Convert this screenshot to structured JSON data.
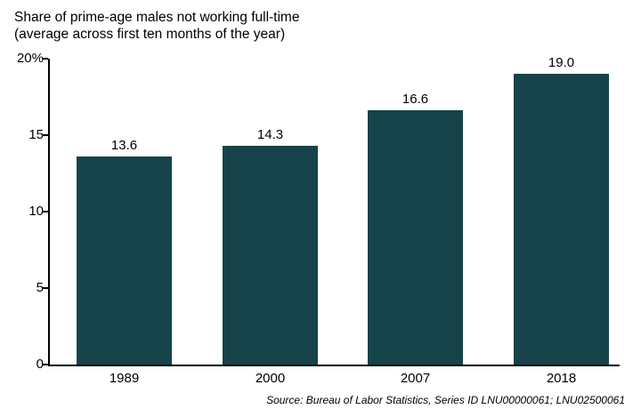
{
  "title": {
    "line1": "Share of prime-age males not working full-time",
    "line2": "(average across first ten months of the year)"
  },
  "source_note": "Source: Bureau of Labor Statistics, Series ID LNU00000061; LNU02500061",
  "colors": {
    "bar": "#164349",
    "axis": "#000000",
    "text": "#000000"
  },
  "chart_data": {
    "type": "bar",
    "title": "Share of prime-age males not working full-time (average across first ten months of the year)",
    "categories": [
      "1989",
      "2000",
      "2007",
      "2018"
    ],
    "values": [
      13.6,
      14.3,
      16.6,
      19.0
    ],
    "value_labels": [
      "13.6",
      "14.3",
      "16.6",
      "19.0"
    ],
    "xlabel": "",
    "ylabel": "",
    "ylim": [
      0,
      20
    ],
    "yticks": [
      0,
      5,
      10,
      15,
      20
    ],
    "ytick_labels": [
      "0",
      "5",
      "10",
      "15",
      "20%"
    ],
    "grid": false,
    "legend": false,
    "annotations": [
      "Source: Bureau of Labor Statistics, Series ID LNU00000061; LNU02500061"
    ]
  }
}
